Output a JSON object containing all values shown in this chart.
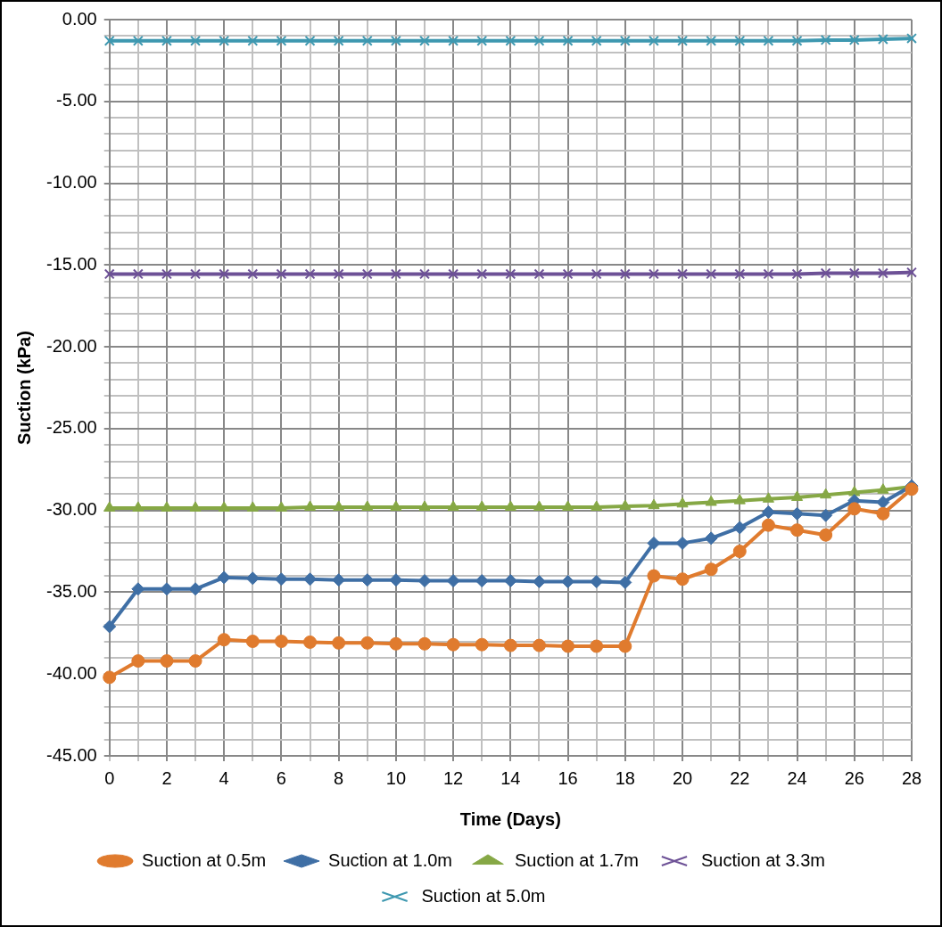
{
  "chart_data": {
    "type": "line",
    "xlabel": "Time (Days)",
    "ylabel": "Suction (kPa)",
    "x": [
      0,
      1,
      2,
      3,
      4,
      5,
      6,
      7,
      8,
      9,
      10,
      11,
      12,
      13,
      14,
      15,
      16,
      17,
      18,
      19,
      20,
      21,
      22,
      23,
      24,
      25,
      26,
      27,
      28
    ],
    "series": [
      {
        "name": "Suction at 0.5m",
        "color": "#e07b2e",
        "marker": "circle",
        "values": [
          -40.2,
          -39.2,
          -39.2,
          -39.2,
          -37.9,
          -38.0,
          -38.0,
          -38.05,
          -38.1,
          -38.1,
          -38.15,
          -38.15,
          -38.2,
          -38.2,
          -38.25,
          -38.25,
          -38.3,
          -38.3,
          -38.3,
          -34.0,
          -34.2,
          -33.6,
          -32.5,
          -30.9,
          -31.2,
          -31.5,
          -29.9,
          -30.2,
          -28.7
        ]
      },
      {
        "name": "Suction at 1.0m",
        "color": "#3f6fa5",
        "marker": "diamond",
        "values": [
          -37.1,
          -34.8,
          -34.8,
          -34.8,
          -34.1,
          -34.15,
          -34.2,
          -34.2,
          -34.25,
          -34.25,
          -34.25,
          -34.3,
          -34.3,
          -34.3,
          -34.3,
          -34.35,
          -34.35,
          -34.35,
          -34.4,
          -32.0,
          -32.0,
          -31.7,
          -31.05,
          -30.1,
          -30.2,
          -30.3,
          -29.4,
          -29.5,
          -28.5
        ]
      },
      {
        "name": "Suction at 1.7m",
        "color": "#86a845",
        "marker": "triangle",
        "values": [
          -29.85,
          -29.85,
          -29.85,
          -29.85,
          -29.85,
          -29.85,
          -29.85,
          -29.8,
          -29.8,
          -29.8,
          -29.8,
          -29.8,
          -29.8,
          -29.8,
          -29.8,
          -29.8,
          -29.8,
          -29.8,
          -29.75,
          -29.7,
          -29.6,
          -29.5,
          -29.4,
          -29.3,
          -29.2,
          -29.05,
          -28.9,
          -28.75,
          -28.55
        ]
      },
      {
        "name": "Suction at 3.3m",
        "color": "#6d5196",
        "marker": "cross",
        "values": [
          -15.55,
          -15.55,
          -15.55,
          -15.55,
          -15.55,
          -15.55,
          -15.55,
          -15.55,
          -15.55,
          -15.55,
          -15.55,
          -15.55,
          -15.55,
          -15.55,
          -15.55,
          -15.55,
          -15.55,
          -15.55,
          -15.55,
          -15.55,
          -15.55,
          -15.55,
          -15.55,
          -15.55,
          -15.55,
          -15.5,
          -15.5,
          -15.5,
          -15.45
        ]
      },
      {
        "name": "Suction at 5.0m",
        "color": "#3e98b0",
        "marker": "cross",
        "values": [
          -1.3,
          -1.3,
          -1.3,
          -1.3,
          -1.3,
          -1.3,
          -1.3,
          -1.3,
          -1.3,
          -1.3,
          -1.3,
          -1.3,
          -1.3,
          -1.3,
          -1.3,
          -1.3,
          -1.3,
          -1.3,
          -1.3,
          -1.3,
          -1.3,
          -1.3,
          -1.3,
          -1.3,
          -1.3,
          -1.25,
          -1.25,
          -1.2,
          -1.15
        ]
      }
    ],
    "xlim": [
      0,
      28
    ],
    "xticks": [
      0,
      {
        "value": 1,
        "label": null
      },
      2,
      {
        "value": 3,
        "label": null
      },
      4,
      {
        "value": 5,
        "label": null
      },
      6,
      {
        "value": 7,
        "label": null
      },
      8,
      {
        "value": 9,
        "label": null
      },
      10,
      {
        "value": 11,
        "label": null
      },
      12,
      {
        "value": 13,
        "label": null
      },
      14,
      {
        "value": 15,
        "label": null
      },
      16,
      {
        "value": 17,
        "label": null
      },
      18,
      {
        "value": 19,
        "label": null
      },
      20,
      {
        "value": 21,
        "label": null
      },
      22,
      {
        "value": 23,
        "label": null
      },
      24,
      {
        "value": 25,
        "label": null
      },
      26,
      {
        "value": 27,
        "label": null
      },
      28
    ],
    "ylim": [
      -45,
      0
    ],
    "yticks": [
      {
        "value": -45,
        "label": "-45.00"
      },
      {
        "value": -44,
        "label": null
      },
      {
        "value": -43,
        "label": null
      },
      {
        "value": -42,
        "label": null
      },
      {
        "value": -41,
        "label": null
      },
      {
        "value": -40,
        "label": "-40.00"
      },
      {
        "value": -39,
        "label": null
      },
      {
        "value": -38,
        "label": null
      },
      {
        "value": -37,
        "label": null
      },
      {
        "value": -36,
        "label": null
      },
      {
        "value": -35,
        "label": "-35.00"
      },
      {
        "value": -34,
        "label": null
      },
      {
        "value": -33,
        "label": null
      },
      {
        "value": -32,
        "label": null
      },
      {
        "value": -31,
        "label": null
      },
      {
        "value": -30,
        "label": "-30.00"
      },
      {
        "value": -29,
        "label": null
      },
      {
        "value": -28,
        "label": null
      },
      {
        "value": -27,
        "label": null
      },
      {
        "value": -26,
        "label": null
      },
      {
        "value": -25,
        "label": "-25.00"
      },
      {
        "value": -24,
        "label": null
      },
      {
        "value": -23,
        "label": null
      },
      {
        "value": -22,
        "label": null
      },
      {
        "value": -21,
        "label": null
      },
      {
        "value": -20,
        "label": "-20.00"
      },
      {
        "value": -19,
        "label": null
      },
      {
        "value": -18,
        "label": null
      },
      {
        "value": -17,
        "label": null
      },
      {
        "value": -16,
        "label": null
      },
      {
        "value": -15,
        "label": "-15.00"
      },
      {
        "value": -14,
        "label": null
      },
      {
        "value": -13,
        "label": null
      },
      {
        "value": -12,
        "label": null
      },
      {
        "value": -11,
        "label": null
      },
      {
        "value": -10,
        "label": "-10.00"
      },
      {
        "value": -9,
        "label": null
      },
      {
        "value": -8,
        "label": null
      },
      {
        "value": -7,
        "label": null
      },
      {
        "value": -6,
        "label": null
      },
      {
        "value": -5,
        "label": "-5.00"
      },
      {
        "value": -4,
        "label": null
      },
      {
        "value": -3,
        "label": null
      },
      {
        "value": -2,
        "label": null
      },
      {
        "value": -1,
        "label": null
      },
      {
        "value": 0,
        "label": "0.00"
      }
    ],
    "grid": true,
    "legend": "bottom",
    "line_style": "solid"
  }
}
